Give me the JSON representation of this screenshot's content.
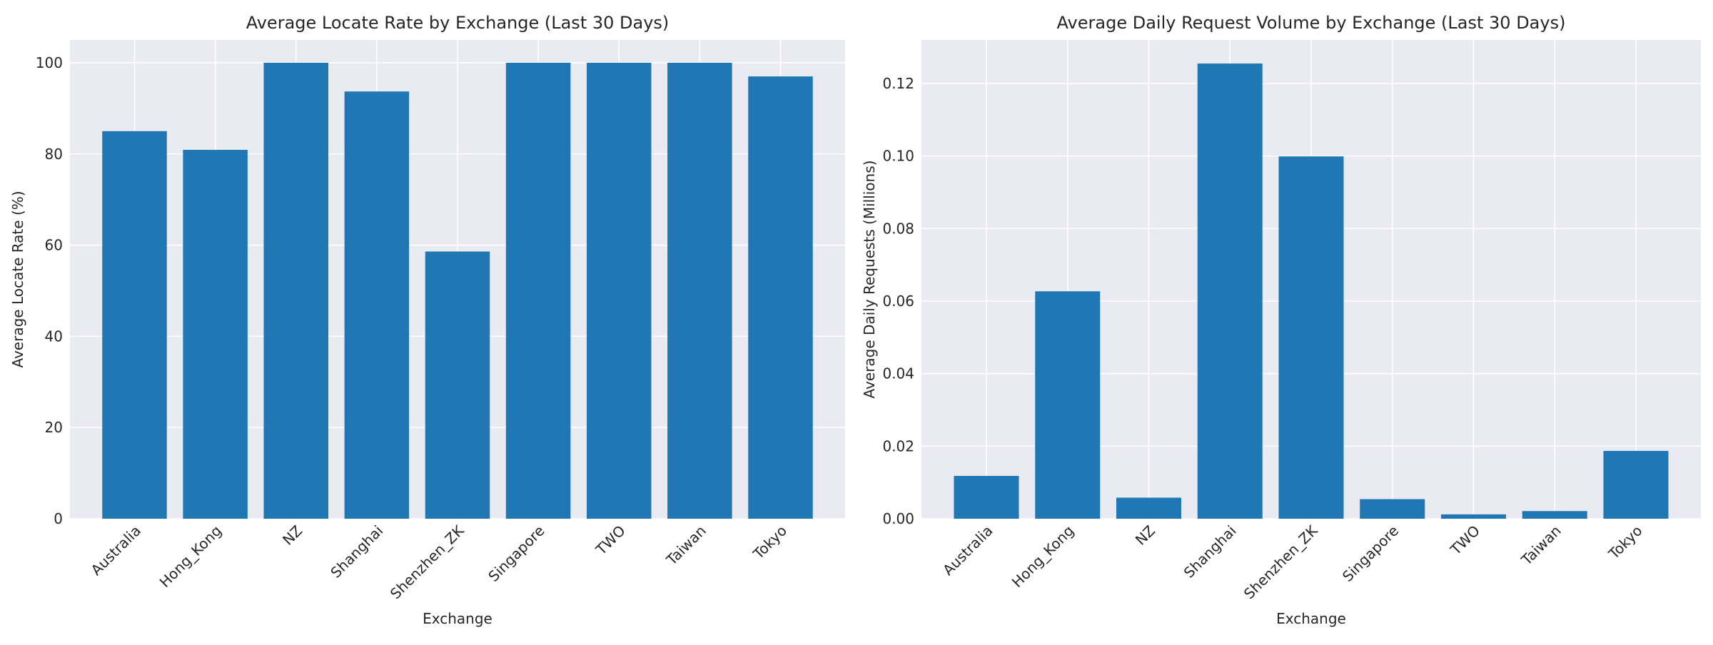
{
  "chart_data": [
    {
      "type": "bar",
      "title": "Average Locate Rate by Exchange (Last 30 Days)",
      "xlabel": "Exchange",
      "ylabel": "Average Locate Rate (%)",
      "categories": [
        "Australia",
        "Hong_Kong",
        "NZ",
        "Shanghai",
        "Shenzhen_ZK",
        "Singapore",
        "TWO",
        "Taiwan",
        "Tokyo"
      ],
      "values": [
        85.0,
        80.9,
        100.0,
        93.7,
        58.6,
        100.0,
        100.0,
        100.0,
        97.0
      ],
      "ylim": [
        0,
        105
      ],
      "yticks": [
        0,
        20,
        40,
        60,
        80,
        100
      ],
      "ytick_labels": [
        "0",
        "20",
        "40",
        "60",
        "80",
        "100"
      ],
      "grid": true,
      "bar_color": "#1f77b4"
    },
    {
      "type": "bar",
      "title": "Average Daily Request Volume by Exchange (Last 30 Days)",
      "xlabel": "Exchange",
      "ylabel": "Average Daily Requests (Millions)",
      "categories": [
        "Australia",
        "Hong_Kong",
        "NZ",
        "Shanghai",
        "Shenzhen_ZK",
        "Singapore",
        "TWO",
        "Taiwan",
        "Tokyo"
      ],
      "values": [
        0.0118,
        0.0627,
        0.0058,
        0.1255,
        0.0999,
        0.0054,
        0.0012,
        0.0021,
        0.0187
      ],
      "ylim": [
        0,
        0.132
      ],
      "yticks": [
        0,
        0.02,
        0.04,
        0.06,
        0.08,
        0.1,
        0.12
      ],
      "ytick_labels": [
        "0.00",
        "0.02",
        "0.04",
        "0.06",
        "0.08",
        "0.10",
        "0.12"
      ],
      "grid": true,
      "bar_color": "#1f77b4"
    }
  ]
}
